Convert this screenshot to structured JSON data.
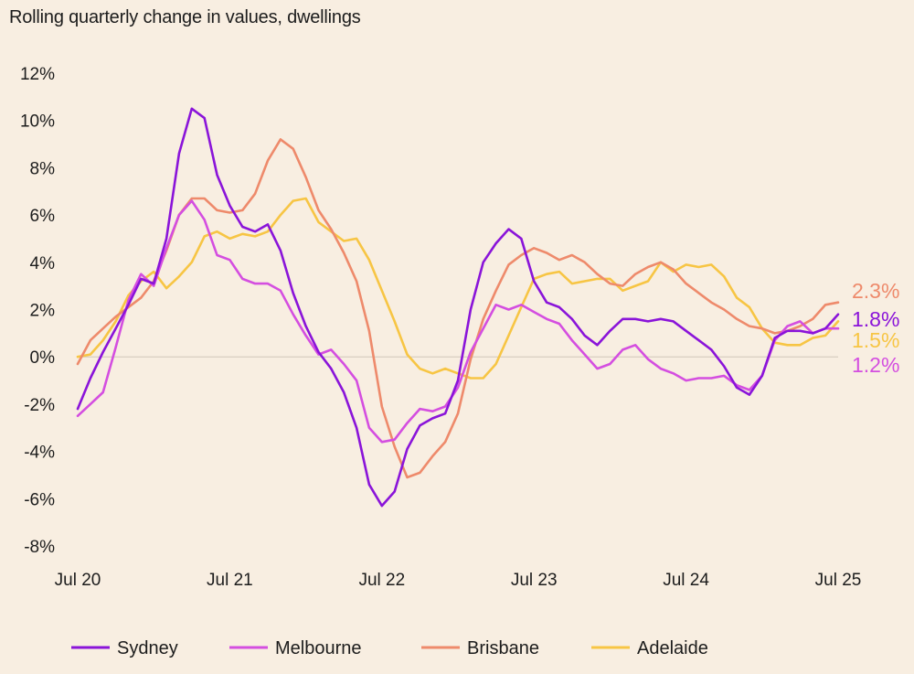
{
  "chart_data": {
    "type": "line",
    "title": "Rolling quarterly change in values, dwellings",
    "xlabel": "",
    "ylabel": "",
    "ylim": [
      -8,
      12
    ],
    "yticks": [
      12,
      10,
      8,
      6,
      4,
      2,
      0,
      -2,
      -4,
      -6,
      -8
    ],
    "ytick_labels": [
      "12%",
      "10%",
      "8%",
      "6%",
      "4%",
      "2%",
      "0%",
      "-2%",
      "-4%",
      "-6%",
      "-8%"
    ],
    "x_start": "Jul 20",
    "x_end": "Jul 25",
    "x_tick_labels": [
      "Jul 20",
      "Jul 21",
      "Jul 22",
      "Jul 23",
      "Jul 24",
      "Jul 25"
    ],
    "x_tick_months": [
      0,
      12,
      24,
      36,
      48,
      60
    ],
    "legend_position": "bottom",
    "series": [
      {
        "name": "Sydney",
        "color": "#8a14d9",
        "end_label": "1.8%",
        "values": [
          -2.2,
          -0.9,
          0.2,
          1.2,
          2.2,
          3.3,
          3.1,
          5.0,
          8.6,
          10.5,
          10.1,
          7.7,
          6.4,
          5.5,
          5.3,
          5.6,
          4.5,
          2.7,
          1.3,
          0.2,
          -0.5,
          -1.5,
          -3.0,
          -5.4,
          -6.3,
          -5.7,
          -3.9,
          -2.9,
          -2.6,
          -2.4,
          -1.0,
          2.0,
          4.0,
          4.8,
          5.4,
          5.0,
          3.2,
          2.3,
          2.1,
          1.6,
          0.9,
          0.5,
          1.1,
          1.6,
          1.6,
          1.5,
          1.6,
          1.5,
          1.1,
          0.7,
          0.3,
          -0.4,
          -1.3,
          -1.6,
          -0.8,
          0.8,
          1.1,
          1.1,
          1.0,
          1.2,
          1.8
        ]
      },
      {
        "name": "Melbourne",
        "color": "#d44ee0",
        "end_label": "1.2%",
        "values": [
          -2.5,
          -2.0,
          -1.5,
          0.4,
          2.4,
          3.5,
          3.0,
          4.6,
          6.0,
          6.6,
          5.8,
          4.3,
          4.1,
          3.3,
          3.1,
          3.1,
          2.8,
          1.8,
          0.9,
          0.1,
          0.3,
          -0.3,
          -1.0,
          -3.0,
          -3.6,
          -3.5,
          -2.8,
          -2.2,
          -2.3,
          -2.1,
          -1.3,
          0.2,
          1.2,
          2.2,
          2.0,
          2.2,
          1.9,
          1.6,
          1.4,
          0.7,
          0.1,
          -0.5,
          -0.3,
          0.3,
          0.5,
          -0.1,
          -0.5,
          -0.7,
          -1.0,
          -0.9,
          -0.9,
          -0.8,
          -1.2,
          -1.4,
          -0.8,
          0.7,
          1.3,
          1.5,
          1.0,
          1.2,
          1.2
        ]
      },
      {
        "name": "Brisbane",
        "color": "#ee8a6b",
        "end_label": "2.3%",
        "values": [
          -0.3,
          0.7,
          1.2,
          1.7,
          2.1,
          2.5,
          3.2,
          4.5,
          6.0,
          6.7,
          6.7,
          6.2,
          6.1,
          6.2,
          6.9,
          8.3,
          9.2,
          8.8,
          7.6,
          6.2,
          5.4,
          4.4,
          3.2,
          1.1,
          -2.1,
          -3.8,
          -5.1,
          -4.9,
          -4.2,
          -3.6,
          -2.4,
          -0.1,
          1.6,
          2.8,
          3.9,
          4.3,
          4.6,
          4.4,
          4.1,
          4.3,
          4.0,
          3.5,
          3.1,
          3.0,
          3.5,
          3.8,
          4.0,
          3.7,
          3.1,
          2.7,
          2.3,
          2.0,
          1.6,
          1.3,
          1.2,
          1.0,
          1.1,
          1.3,
          1.6,
          2.2,
          2.3
        ]
      },
      {
        "name": "Adelaide",
        "color": "#f7c544",
        "end_label": "1.5%",
        "values": [
          0.0,
          0.1,
          0.7,
          1.5,
          2.6,
          3.2,
          3.6,
          2.9,
          3.4,
          4.0,
          5.1,
          5.3,
          5.0,
          5.2,
          5.1,
          5.3,
          6.0,
          6.6,
          6.7,
          5.7,
          5.3,
          4.9,
          5.0,
          4.1,
          2.8,
          1.5,
          0.1,
          -0.5,
          -0.7,
          -0.5,
          -0.7,
          -0.9,
          -0.9,
          -0.3,
          0.9,
          2.1,
          3.3,
          3.5,
          3.6,
          3.1,
          3.2,
          3.3,
          3.3,
          2.8,
          3.0,
          3.2,
          4.0,
          3.6,
          3.9,
          3.8,
          3.9,
          3.4,
          2.5,
          2.1,
          1.2,
          0.6,
          0.5,
          0.5,
          0.8,
          0.9,
          1.5
        ]
      }
    ]
  }
}
